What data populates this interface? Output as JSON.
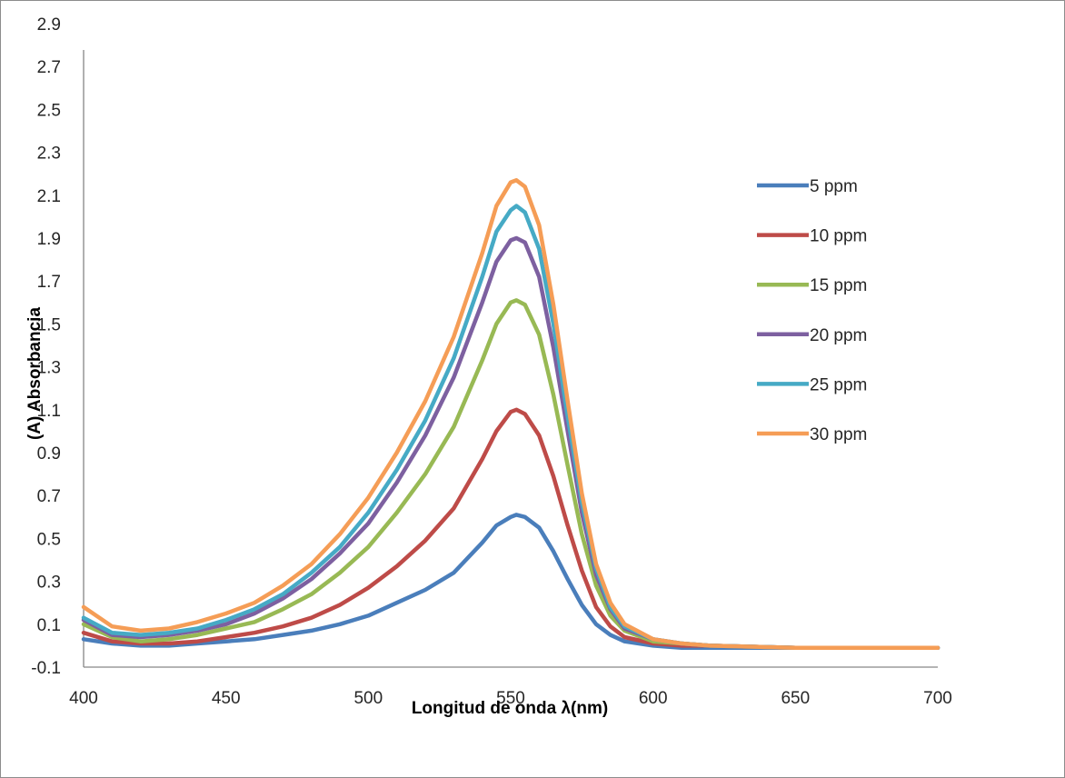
{
  "chart_data": {
    "type": "line",
    "title": "",
    "xlabel": "Longitud de onda λ(nm)",
    "ylabel": "(A) Absorbancia",
    "xlim": [
      400,
      700
    ],
    "ylim": [
      -0.1,
      3.0
    ],
    "x_ticks": [
      "400",
      "450",
      "500",
      "550",
      "600",
      "650",
      "700"
    ],
    "y_ticks": [
      "-0.1",
      "0.1",
      "0.3",
      "0.5",
      "0.7",
      "0.9",
      "1.1",
      "1.3",
      "1.5",
      "1.7",
      "1.9",
      "2.1",
      "2.3",
      "2.5",
      "2.7",
      "2.9"
    ],
    "grid": false,
    "legend_position": "right",
    "x": [
      400,
      410,
      420,
      430,
      440,
      450,
      460,
      470,
      480,
      490,
      500,
      510,
      520,
      530,
      540,
      545,
      550,
      552,
      555,
      560,
      565,
      570,
      575,
      580,
      585,
      590,
      600,
      610,
      620,
      650,
      700
    ],
    "series": [
      {
        "name": "5 ppm",
        "color": "#4a7ebb",
        "values": [
          0.03,
          0.01,
          0.0,
          0.0,
          0.01,
          0.02,
          0.03,
          0.05,
          0.07,
          0.1,
          0.14,
          0.2,
          0.26,
          0.34,
          0.48,
          0.56,
          0.6,
          0.61,
          0.6,
          0.55,
          0.44,
          0.31,
          0.19,
          0.1,
          0.05,
          0.02,
          0.0,
          -0.01,
          -0.01,
          -0.01,
          -0.01
        ]
      },
      {
        "name": "10 ppm",
        "color": "#be4b48",
        "values": [
          0.06,
          0.02,
          0.01,
          0.01,
          0.02,
          0.04,
          0.06,
          0.09,
          0.13,
          0.19,
          0.27,
          0.37,
          0.49,
          0.64,
          0.87,
          1.0,
          1.09,
          1.1,
          1.08,
          0.98,
          0.79,
          0.56,
          0.35,
          0.18,
          0.09,
          0.04,
          0.01,
          0.0,
          0.0,
          -0.01,
          -0.01
        ]
      },
      {
        "name": "15 ppm",
        "color": "#98b954",
        "values": [
          0.1,
          0.04,
          0.02,
          0.03,
          0.05,
          0.08,
          0.11,
          0.17,
          0.24,
          0.34,
          0.46,
          0.62,
          0.8,
          1.02,
          1.33,
          1.5,
          1.6,
          1.61,
          1.59,
          1.45,
          1.17,
          0.84,
          0.52,
          0.28,
          0.14,
          0.07,
          0.02,
          0.01,
          0.0,
          -0.01,
          -0.01
        ]
      },
      {
        "name": "20 ppm",
        "color": "#7d60a0",
        "values": [
          0.12,
          0.05,
          0.04,
          0.05,
          0.07,
          0.1,
          0.15,
          0.22,
          0.31,
          0.43,
          0.57,
          0.76,
          0.98,
          1.25,
          1.6,
          1.79,
          1.89,
          1.9,
          1.88,
          1.72,
          1.39,
          1.0,
          0.62,
          0.33,
          0.17,
          0.08,
          0.03,
          0.01,
          0.0,
          -0.01,
          -0.01
        ]
      },
      {
        "name": "25 ppm",
        "color": "#46aac5",
        "values": [
          0.13,
          0.06,
          0.05,
          0.06,
          0.08,
          0.12,
          0.17,
          0.24,
          0.34,
          0.46,
          0.62,
          0.82,
          1.05,
          1.34,
          1.72,
          1.93,
          2.03,
          2.05,
          2.02,
          1.85,
          1.5,
          1.07,
          0.67,
          0.36,
          0.18,
          0.09,
          0.03,
          0.01,
          0.0,
          -0.01,
          -0.01
        ]
      },
      {
        "name": "30 ppm",
        "color": "#f59d56",
        "values": [
          0.18,
          0.09,
          0.07,
          0.08,
          0.11,
          0.15,
          0.2,
          0.28,
          0.38,
          0.52,
          0.69,
          0.9,
          1.14,
          1.44,
          1.83,
          2.05,
          2.16,
          2.17,
          2.14,
          1.96,
          1.59,
          1.14,
          0.71,
          0.38,
          0.2,
          0.1,
          0.03,
          0.01,
          0.0,
          -0.01,
          -0.01
        ]
      }
    ]
  }
}
